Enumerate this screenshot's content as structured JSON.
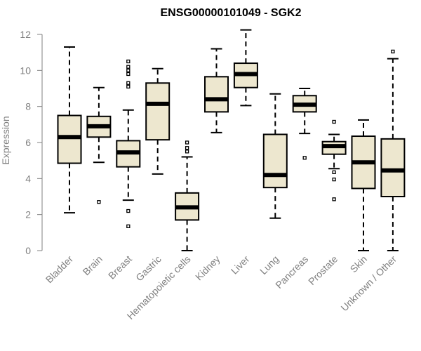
{
  "chart_data": {
    "type": "boxplot",
    "title": "ENSG00000101049 - SGK2",
    "xlabel": "",
    "ylabel": "Expression",
    "ylim": [
      0,
      12
    ],
    "yticks": [
      0,
      2,
      4,
      6,
      8,
      10,
      12
    ],
    "colors": {
      "box_fill": "#ede7cf",
      "stroke": "#000000",
      "axis": "#808080",
      "label": "#808080"
    },
    "categories": [
      "Bladder",
      "Brain",
      "Breast",
      "Gastric",
      "Hematopoietic cells",
      "Kidney",
      "Liver",
      "Lung",
      "Pancreas",
      "Prostate",
      "Skin",
      "Unknown / Other"
    ],
    "boxes": [
      {
        "category": "Bladder",
        "whisker_low": 2.1,
        "q1": 4.85,
        "median": 6.3,
        "q3": 7.5,
        "whisker_high": 11.3,
        "outliers": []
      },
      {
        "category": "Brain",
        "whisker_low": 4.9,
        "q1": 6.3,
        "median": 6.9,
        "q3": 7.45,
        "whisker_high": 9.05,
        "outliers": [
          2.7
        ]
      },
      {
        "category": "Breast",
        "whisker_low": 2.8,
        "q1": 4.65,
        "median": 5.45,
        "q3": 6.1,
        "whisker_high": 7.8,
        "outliers": [
          1.35,
          2.2,
          9.1,
          9.3,
          9.8,
          10.0,
          10.2,
          10.5
        ]
      },
      {
        "category": "Gastric",
        "whisker_low": 4.25,
        "q1": 6.15,
        "median": 8.15,
        "q3": 9.3,
        "whisker_high": 10.1,
        "outliers": []
      },
      {
        "category": "Hematopoietic cells",
        "whisker_low": 0.0,
        "q1": 1.7,
        "median": 2.4,
        "q3": 3.2,
        "whisker_high": 5.2,
        "outliers": [
          5.5,
          5.7,
          6.0
        ]
      },
      {
        "category": "Kidney",
        "whisker_low": 6.55,
        "q1": 7.7,
        "median": 8.4,
        "q3": 9.65,
        "whisker_high": 11.2,
        "outliers": []
      },
      {
        "category": "Liver",
        "whisker_low": 8.05,
        "q1": 9.05,
        "median": 9.8,
        "q3": 10.4,
        "whisker_high": 12.25,
        "outliers": []
      },
      {
        "category": "Lung",
        "whisker_low": 1.8,
        "q1": 3.5,
        "median": 4.2,
        "q3": 6.45,
        "whisker_high": 8.7,
        "outliers": []
      },
      {
        "category": "Pancreas",
        "whisker_low": 6.5,
        "q1": 7.7,
        "median": 8.1,
        "q3": 8.6,
        "whisker_high": 9.0,
        "outliers": [
          5.15
        ]
      },
      {
        "category": "Prostate",
        "whisker_low": 4.55,
        "q1": 5.35,
        "median": 5.8,
        "q3": 6.05,
        "whisker_high": 6.45,
        "outliers": [
          2.85,
          3.95,
          4.35,
          7.15
        ]
      },
      {
        "category": "Skin",
        "whisker_low": 0.0,
        "q1": 3.45,
        "median": 4.9,
        "q3": 6.35,
        "whisker_high": 7.25,
        "outliers": []
      },
      {
        "category": "Unknown / Other",
        "whisker_low": 0.0,
        "q1": 3.0,
        "median": 4.45,
        "q3": 6.2,
        "whisker_high": 10.65,
        "outliers": [
          11.05
        ]
      }
    ]
  }
}
